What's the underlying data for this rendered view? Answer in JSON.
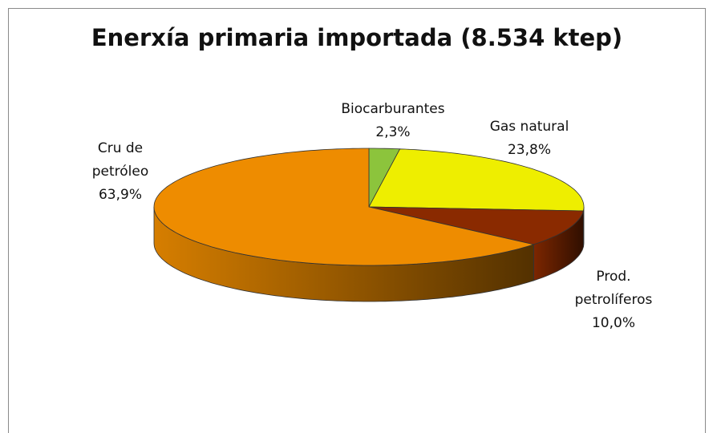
{
  "chart_data": {
    "type": "pie3d",
    "title": "Enerxía primaria importada (8.534 ktep)",
    "categories": [
      "Biocarburantes",
      "Gas natural",
      "Prod. petrolíferos",
      "Cru de petróleo"
    ],
    "values": [
      2.3,
      23.8,
      10.0,
      63.9
    ],
    "value_labels": [
      "2,3%",
      "23,8%",
      "10,0%",
      "63,9%"
    ],
    "colors": [
      "#8cc43c",
      "#eeee00",
      "#8a2a00",
      "#ee8c00"
    ]
  }
}
